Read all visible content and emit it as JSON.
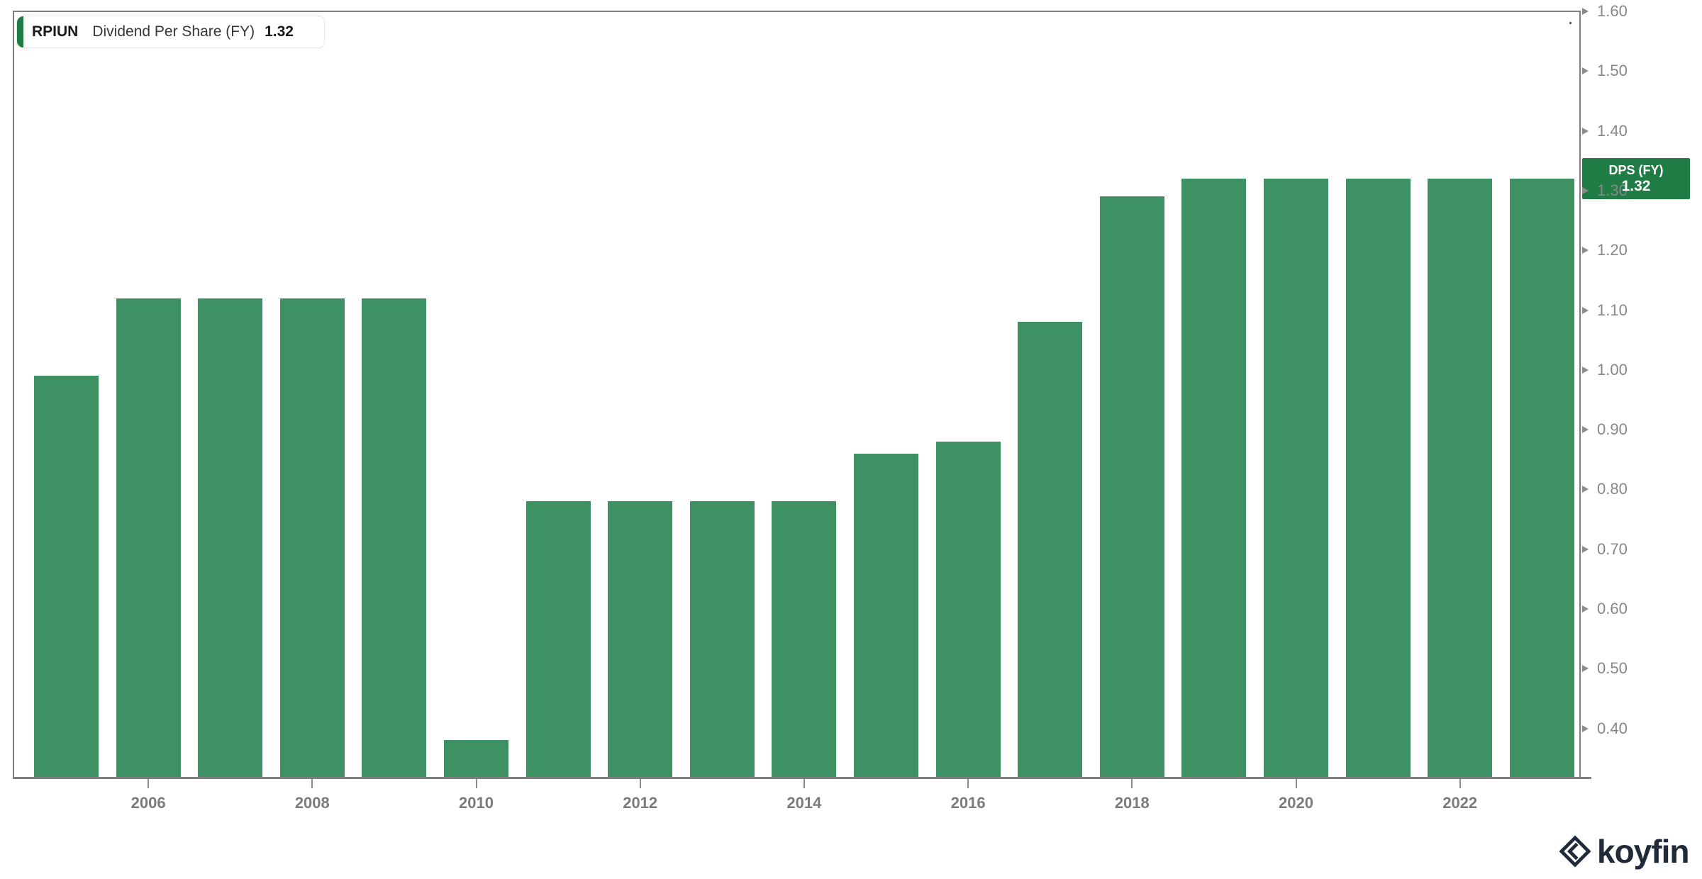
{
  "header": {
    "ticker": "RPIUN",
    "metric": "Dividend Per Share (FY)",
    "value": "1.32"
  },
  "chart_data": {
    "type": "bar",
    "title": "RPIUN Dividend Per Share (FY)",
    "series_name": "Dividend Per Share (FY)",
    "categories": [
      2005,
      2006,
      2007,
      2008,
      2009,
      2010,
      2011,
      2012,
      2013,
      2014,
      2015,
      2016,
      2017,
      2018,
      2019,
      2020,
      2021,
      2022,
      2023
    ],
    "values": [
      0.99,
      1.12,
      1.12,
      1.12,
      1.12,
      0.38,
      0.78,
      0.78,
      0.78,
      0.78,
      0.86,
      0.88,
      1.08,
      1.29,
      1.32,
      1.32,
      1.32,
      1.32,
      1.32
    ],
    "xlabel": "",
    "ylabel": "",
    "ylim": [
      0.317,
      1.6
    ],
    "y_ticks": [
      1.6,
      1.5,
      1.4,
      1.3,
      1.2,
      1.1,
      1.0,
      0.9,
      0.8,
      0.7,
      0.6,
      0.5,
      0.4
    ],
    "x_ticks": [
      2006,
      2008,
      2010,
      2012,
      2014,
      2016,
      2018,
      2020,
      2022
    ],
    "grid": false,
    "legend_position": "top-left",
    "bar_color": "#3e9163",
    "axis_label_color": "#85888a",
    "last_value": 1.32
  },
  "last_value_tag": {
    "line1": "DPS (FY)",
    "line2": "1.32",
    "bg_color": "#1e7c44"
  },
  "branding": {
    "logo_text": "koyfin"
  },
  "accent_color": "#1e7c44"
}
